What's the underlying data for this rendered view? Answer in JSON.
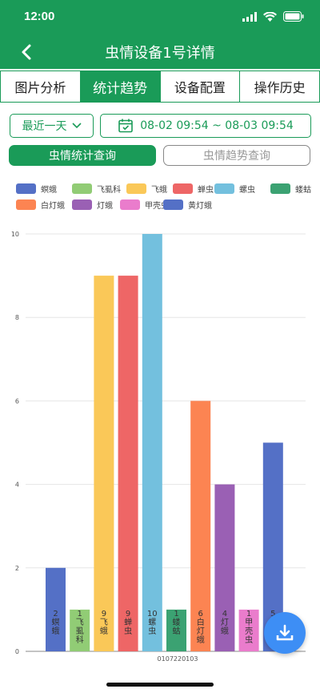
{
  "status": {
    "time": "12:00"
  },
  "nav": {
    "title": "虫情设备1号详情"
  },
  "tabs": [
    {
      "label": "图片分析",
      "active": false
    },
    {
      "label": "统计趋势",
      "active": true
    },
    {
      "label": "设备配置",
      "active": false
    },
    {
      "label": "操作历史",
      "active": false
    }
  ],
  "filter": {
    "range_label": "最近一天",
    "date_range": "08-02 09:54 ~ 08-03 09:54"
  },
  "query": {
    "stats_label": "虫情统计查询",
    "trend_label": "虫情趋势查询"
  },
  "colors": {
    "accent": "#1a9b58",
    "fab": "#3d8ef5"
  },
  "chart_data": {
    "type": "bar",
    "categories": [
      "0107220103"
    ],
    "ylim": [
      0,
      10
    ],
    "yticks": [
      0,
      2,
      4,
      6,
      8,
      10
    ],
    "series": [
      {
        "name": "螟蛾",
        "value": 2,
        "color": "#5470c6"
      },
      {
        "name": "飞虱科",
        "value": 1,
        "color": "#91cc75"
      },
      {
        "name": "飞蛾",
        "value": 9,
        "color": "#fac858"
      },
      {
        "name": "蝉虫",
        "value": 9,
        "color": "#ee6666"
      },
      {
        "name": "螺虫",
        "value": 10,
        "color": "#73c0de"
      },
      {
        "name": "蝼蛄",
        "value": 1,
        "color": "#3ba272"
      },
      {
        "name": "白灯蛾",
        "value": 6,
        "color": "#fc8452"
      },
      {
        "name": "灯蛾",
        "value": 4,
        "color": "#9a60b4"
      },
      {
        "name": "甲壳虫",
        "value": 1,
        "color": "#ea7ccc"
      },
      {
        "name": "黄灯蛾",
        "value": 5,
        "color": "#5470c6"
      }
    ]
  }
}
